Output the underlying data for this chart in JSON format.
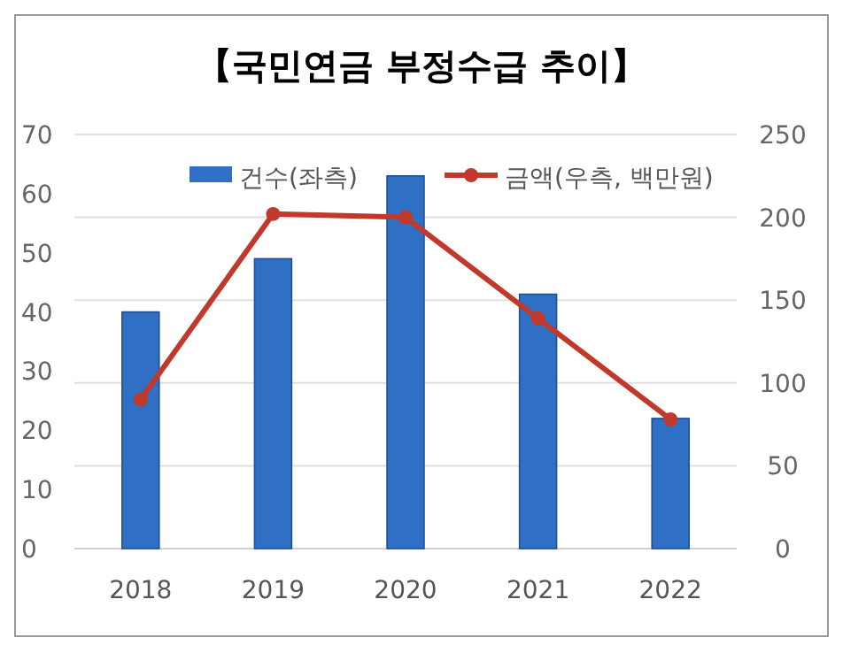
{
  "chart_data": {
    "type": "bar",
    "title": "【국민연금 부정수급 추이】",
    "categories": [
      "2018",
      "2019",
      "2020",
      "2021",
      "2022"
    ],
    "series": [
      {
        "name": "건수(좌측)",
        "color": "#2f6fc4",
        "values": [
          40,
          49,
          63,
          43,
          22
        ]
      },
      {
        "name": "금액(우측, 백만원)",
        "type": "line",
        "axis": "y2",
        "color": "#c0392b",
        "marker": "circle",
        "values": [
          90,
          202,
          200,
          139,
          78
        ]
      }
    ],
    "ylim": [
      0,
      70
    ],
    "yticks": [
      0,
      10,
      20,
      30,
      40,
      50,
      60,
      70
    ],
    "y2lim": [
      0,
      250
    ],
    "y2ticks": [
      0,
      50,
      100,
      150,
      200,
      250
    ],
    "grid": "y2",
    "legend": "top right"
  }
}
